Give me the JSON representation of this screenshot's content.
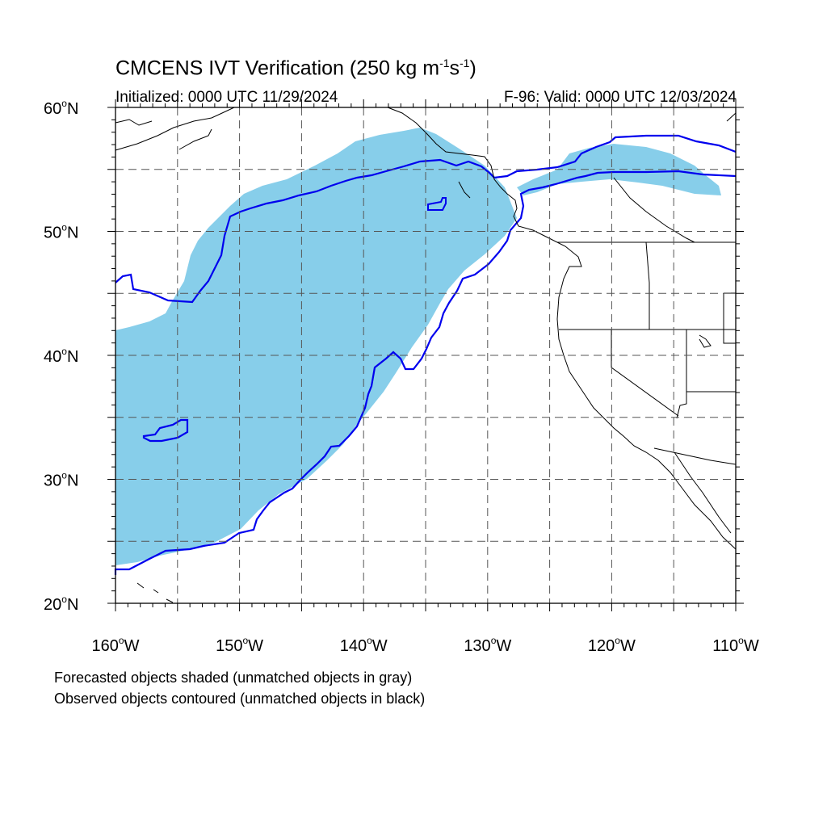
{
  "title": {
    "prefix": "CMCENS IVT Verification (250 kg m",
    "exp1": "-1",
    "mid": "s",
    "exp2": "-1",
    "suffix": ")"
  },
  "initialized": "Initialized: 0000 UTC 11/29/2024",
  "valid": "F-96: Valid: 0000 UTC 12/03/2024",
  "map": {
    "lon_range": [
      -160,
      -110
    ],
    "lat_range": [
      20,
      60
    ],
    "gridlines": "dashed every 5 degrees",
    "lat_labels": [
      {
        "lat": 60,
        "text": "60"
      },
      {
        "lat": 50,
        "text": "50"
      },
      {
        "lat": 40,
        "text": "40"
      },
      {
        "lat": 30,
        "text": "30"
      },
      {
        "lat": 20,
        "text": "20"
      }
    ],
    "lat_suffix": "N",
    "lon_labels": [
      {
        "lon": -160,
        "text": "160"
      },
      {
        "lon": -150,
        "text": "150"
      },
      {
        "lon": -140,
        "text": "140"
      },
      {
        "lon": -130,
        "text": "130"
      },
      {
        "lon": -120,
        "text": "120"
      },
      {
        "lon": -110,
        "text": "110"
      }
    ],
    "lon_suffix": "W",
    "degree_symbol": "o"
  },
  "colors": {
    "forecast_fill": "#87ceea",
    "observed_contour": "#0000ee",
    "coastline": "#000000",
    "grid": "#555555"
  },
  "legend": {
    "line1": "Forecasted objects shaded (unmatched objects in gray)",
    "line2": "Observed objects contoured (unmatched objects in black)"
  }
}
